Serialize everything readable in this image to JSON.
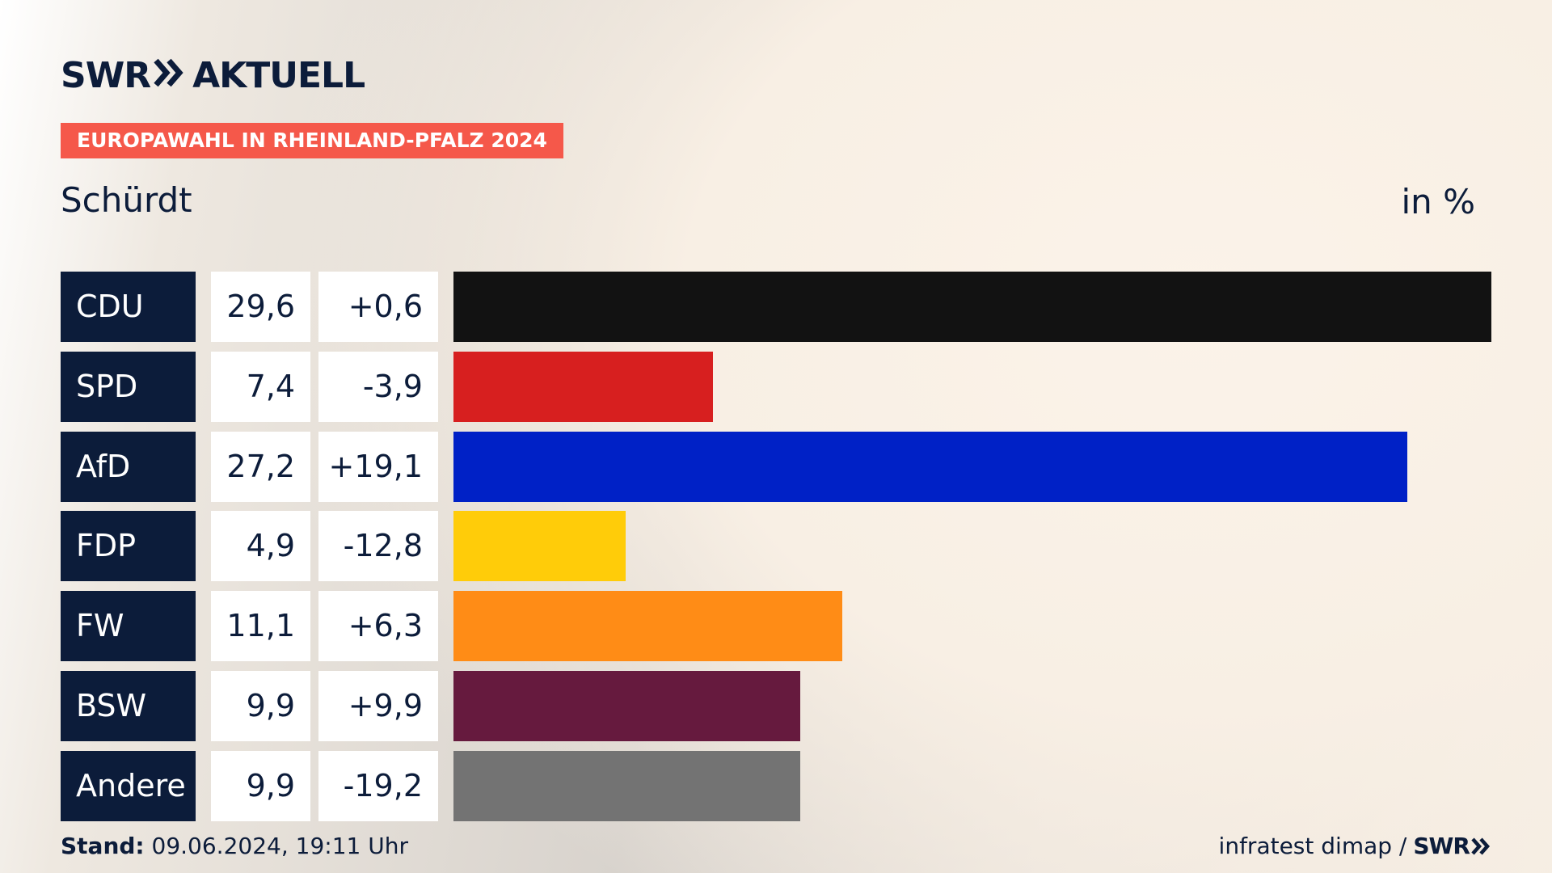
{
  "header": {
    "logo_left": "SWR",
    "logo_right": "AKTUELL",
    "banner": "EUROPAWAHL IN RHEINLAND-PFALZ 2024"
  },
  "colors": {
    "navy": "#0c1c3a",
    "banner": "#f5584a"
  },
  "chart_data": {
    "type": "bar",
    "orientation": "horizontal",
    "title": "Schürdt",
    "unit": "in %",
    "categories": [
      "CDU",
      "SPD",
      "AfD",
      "FDP",
      "FW",
      "BSW",
      "Andere"
    ],
    "values": [
      29.6,
      7.4,
      27.2,
      4.9,
      11.1,
      9.9,
      9.9
    ],
    "value_labels": [
      "29,6",
      "7,4",
      "27,2",
      "4,9",
      "11,1",
      "9,9",
      "9,9"
    ],
    "change_labels": [
      "+0,6",
      "-3,9",
      "+19,1",
      "-12,8",
      "+6,3",
      "+9,9",
      "-19,2"
    ],
    "colors": [
      "#121212",
      "#d71f1f",
      "#0021c6",
      "#ffcc09",
      "#ff8c16",
      "#661a3e",
      "#737373"
    ],
    "xlim": [
      0,
      29.6
    ]
  },
  "footer": {
    "stand_label": "Stand:",
    "stand_value": " 09.06.2024, 19:11 Uhr",
    "source": "infratest dimap /",
    "source_logo": "SWR"
  }
}
